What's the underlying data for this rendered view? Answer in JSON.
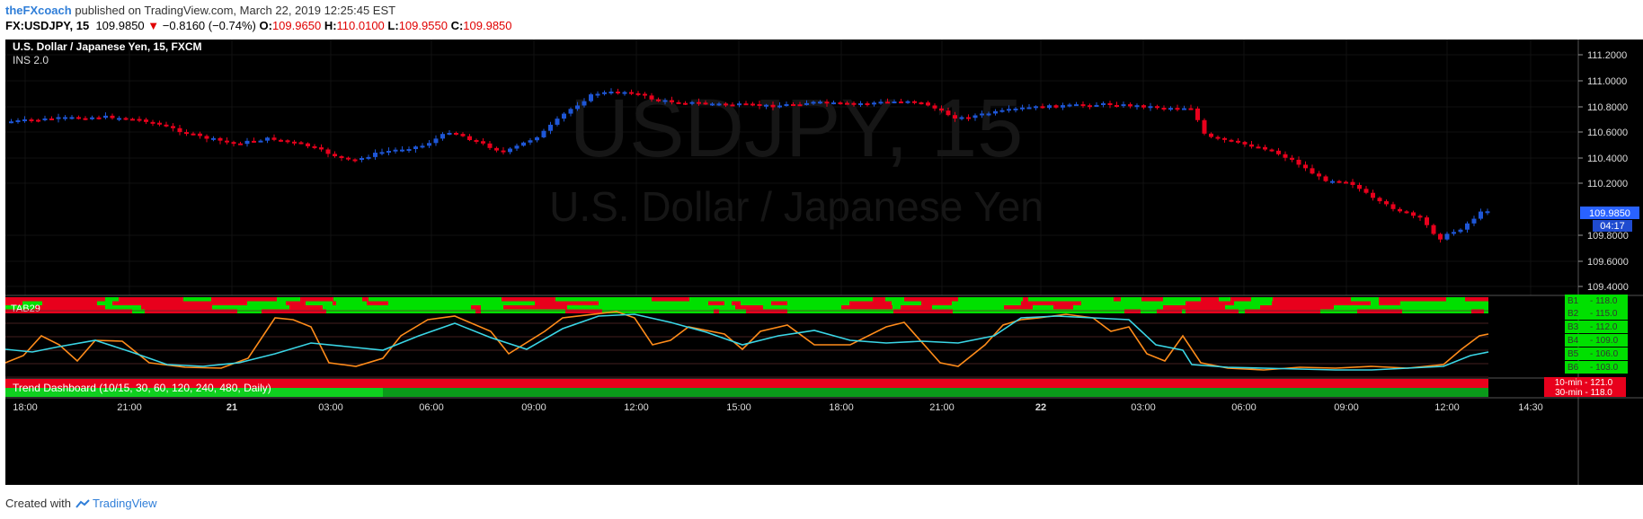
{
  "header": {
    "author": "theFXcoach",
    "published_text": "published on TradingView.com, March 22, 2019 12:25:45 EST",
    "symbol": "FX:USDJPY, 15",
    "last": "109.9850",
    "change_arrow": "▼",
    "change": "−0.8160 (−0.74%)",
    "open_label": "O:",
    "open": "109.9650",
    "high_label": "H:",
    "high": "110.0100",
    "low_label": "L:",
    "low": "109.9550",
    "close_label": "C:",
    "close": "109.9850"
  },
  "main": {
    "title": "U.S. Dollar / Japanese Yen, 15, FXCM",
    "study": "INS 2.0",
    "watermark_symbol": "USDJPY, 15",
    "watermark_name": "U.S. Dollar / Japanese Yen",
    "price_axis": [
      "111.2000",
      "111.0000",
      "110.8000",
      "110.6000",
      "110.4000",
      "110.2000",
      "109.8000",
      "109.6000",
      "109.4000"
    ],
    "last_price": "109.9850",
    "countdown": "04:17"
  },
  "indicator": {
    "tab_label": "TAB29",
    "levels": [
      {
        "label": "B1",
        "value": "118.0"
      },
      {
        "label": "B2",
        "value": "115.0"
      },
      {
        "label": "B3",
        "value": "112.0"
      },
      {
        "label": "B4",
        "value": "109.0"
      },
      {
        "label": "B5",
        "value": "106.0"
      },
      {
        "label": "B6",
        "value": "103.0"
      }
    ]
  },
  "trend": {
    "label": "Trend Dashboard (10/15, 30, 60, 120, 240, 480, Daily)",
    "badge1_label": "10-min",
    "badge1_value": "121.0",
    "badge2_label": "30-min",
    "badge2_value": "118.0"
  },
  "time_axis": [
    "18:00",
    "21:00",
    "21",
    "03:00",
    "06:00",
    "09:00",
    "12:00",
    "15:00",
    "18:00",
    "21:00",
    "22",
    "03:00",
    "06:00",
    "09:00",
    "12:00",
    "14:30"
  ],
  "colors": {
    "up": "#1e56d6",
    "down": "#e8001c",
    "green": "#00e000",
    "orange": "#ff8c1a",
    "cyan": "#3ad6e6",
    "bg": "#000000",
    "price_box": "#2962ff"
  },
  "footer": {
    "created": "Created with",
    "brand": "TradingView"
  }
}
